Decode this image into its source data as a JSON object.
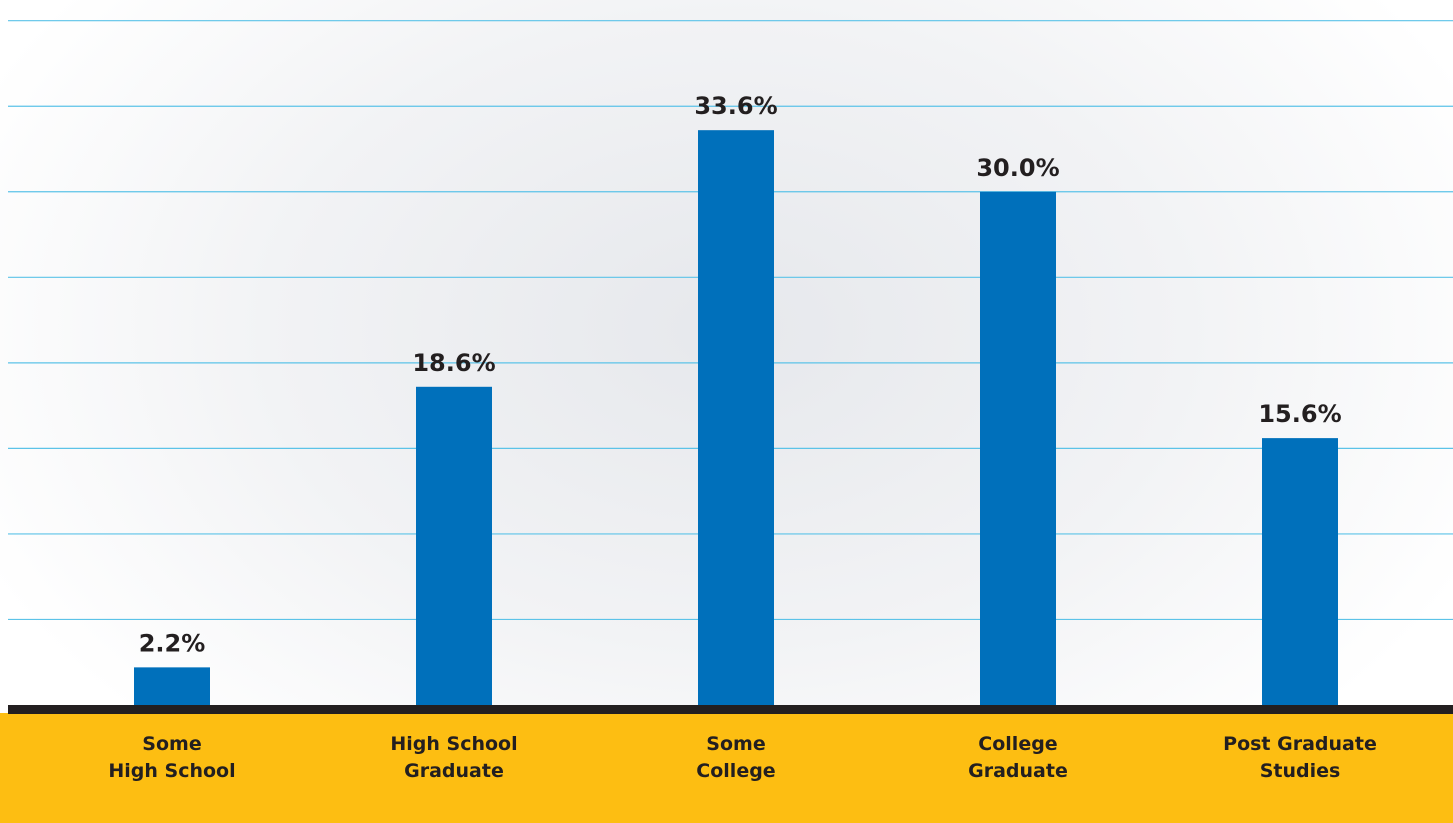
{
  "chart_data": {
    "type": "bar",
    "categories": [
      "Some\nHigh School",
      "High School\nGraduate",
      "Some\nCollege",
      "College\nGraduate",
      "Post Graduate\nStudies"
    ],
    "values": [
      2.2,
      18.6,
      33.6,
      30.0,
      15.6
    ],
    "value_labels": [
      "2.2%",
      "18.6%",
      "33.6%",
      "30.0%",
      "15.6%"
    ],
    "color": "#0070bb",
    "ylim": [
      0,
      40.8
    ],
    "yticks": [
      5,
      10,
      15,
      20,
      25,
      30,
      35,
      40
    ],
    "grid": true
  }
}
